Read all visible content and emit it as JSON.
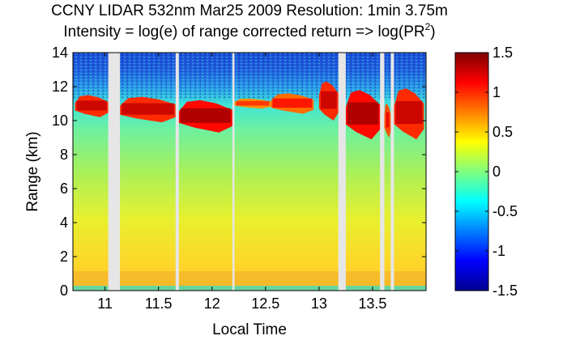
{
  "chart_data": {
    "type": "heatmap",
    "title_line1": "CCNY LIDAR 532nm Mar25 2009 Resolution: 1min 3.75m",
    "title_line2": "Intensity = log(e) of range corrected return => log(PR",
    "title_sup": "2",
    "title_close": ")",
    "xlabel": "Local Time",
    "ylabel": "Range (km)",
    "xlim": [
      10.7,
      14.0
    ],
    "ylim": [
      0,
      14
    ],
    "x_ticks": [
      11,
      11.5,
      12,
      12.5,
      13,
      13.5
    ],
    "x_tick_labels": [
      "11",
      "11.5",
      "12",
      "12.5",
      "13",
      "13.5"
    ],
    "y_ticks": [
      0,
      2,
      4,
      6,
      8,
      10,
      12,
      14
    ],
    "y_tick_labels": [
      "0",
      "2",
      "4",
      "6",
      "8",
      "10",
      "12",
      "14"
    ],
    "colorbar": {
      "range": [
        -1.5,
        1.5
      ],
      "ticks": [
        1.5,
        1,
        0.5,
        0,
        -0.5,
        -1,
        -1.5
      ],
      "tick_labels": [
        "1.5",
        "1",
        "0.5",
        "0",
        "-0.5",
        "-1",
        "-1.5"
      ],
      "colormap": "jet"
    },
    "data_gaps": [
      [
        11.03,
        11.14
      ],
      [
        11.66,
        11.69
      ],
      [
        12.19,
        12.21
      ],
      [
        13.18,
        13.25
      ],
      [
        13.57,
        13.61
      ],
      [
        13.67,
        13.7
      ]
    ],
    "cloud_layer": [
      {
        "x": [
          10.72,
          11.03
        ],
        "base_km": 10.2,
        "top_km": 11.5,
        "intensity": 1.3
      },
      {
        "x": [
          11.14,
          11.66
        ],
        "base_km": 9.9,
        "top_km": 11.4,
        "intensity": 1.3
      },
      {
        "x": [
          11.69,
          12.19
        ],
        "base_km": 9.3,
        "top_km": 11.2,
        "intensity": 1.4
      },
      {
        "x": [
          12.21,
          12.55
        ],
        "base_km": 10.7,
        "top_km": 11.3,
        "intensity": 1.0
      },
      {
        "x": [
          12.55,
          12.95
        ],
        "base_km": 10.4,
        "top_km": 11.6,
        "intensity": 1.1
      },
      {
        "x": [
          13.0,
          13.18
        ],
        "base_km": 10.0,
        "top_km": 12.3,
        "intensity": 1.3
      },
      {
        "x": [
          13.25,
          13.57
        ],
        "base_km": 8.9,
        "top_km": 11.8,
        "intensity": 1.4
      },
      {
        "x": [
          13.61,
          13.67
        ],
        "base_km": 9.0,
        "top_km": 11.0,
        "intensity": 1.2
      },
      {
        "x": [
          13.7,
          13.98
        ],
        "base_km": 8.9,
        "top_km": 11.9,
        "intensity": 1.3
      }
    ]
  }
}
